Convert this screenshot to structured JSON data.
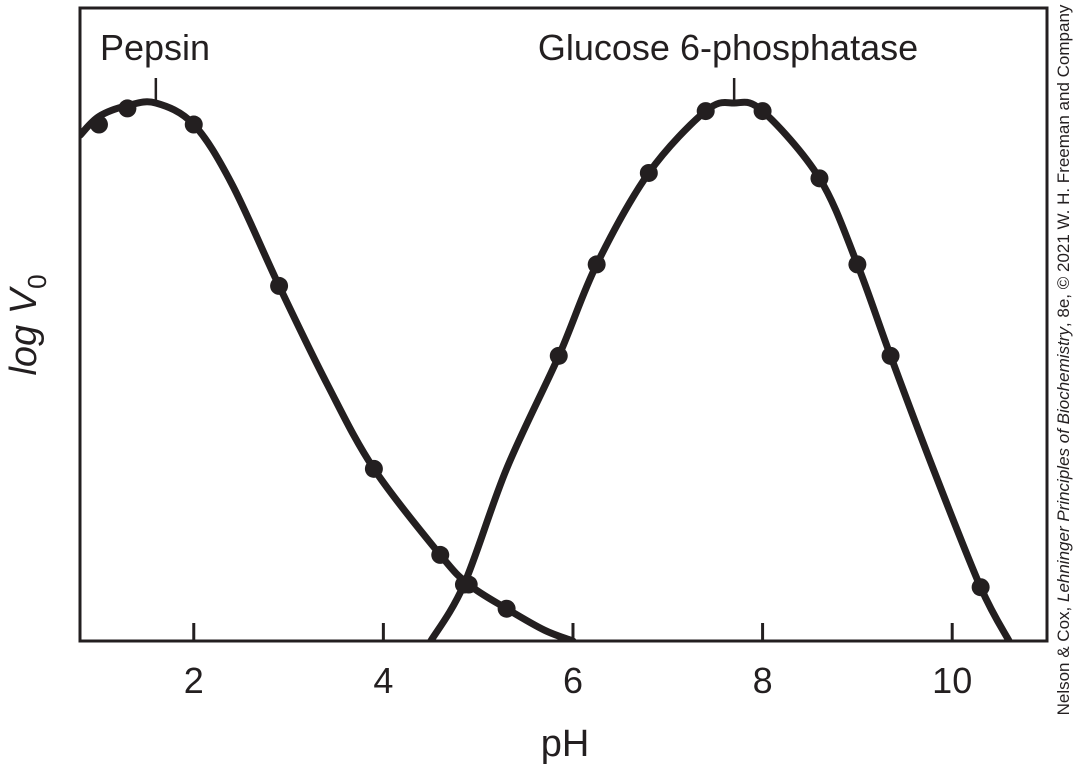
{
  "chart_data": {
    "type": "line",
    "title": "",
    "xlabel": "pH",
    "ylabel_main": "log V",
    "ylabel_sub": "0",
    "xlim": [
      0.8,
      11.0
    ],
    "ylim": [
      0,
      10
    ],
    "x_ticks": [
      2,
      4,
      6,
      8,
      10
    ],
    "x_tick_labels": [
      "2",
      "4",
      "6",
      "8",
      "10"
    ],
    "y_ticks_shown": false,
    "grid": false,
    "credit": {
      "prefix": "Nelson & Cox, ",
      "title_italic": "Lehninger Principles of Biochemistry",
      "suffix": ", 8e, © 2021 W. H. Freeman and Company"
    },
    "series": [
      {
        "name": "Pepsin",
        "label_anchor": [
          1.6,
          10.0
        ],
        "points": [
          [
            1.0,
            9.6
          ],
          [
            1.3,
            9.9
          ],
          [
            2.0,
            9.6
          ],
          [
            2.9,
            6.6
          ],
          [
            3.9,
            3.2
          ],
          [
            4.6,
            1.6
          ],
          [
            4.9,
            1.05
          ],
          [
            5.3,
            0.6
          ]
        ],
        "curve": [
          [
            0.8,
            9.4
          ],
          [
            1.0,
            9.75
          ],
          [
            1.3,
            9.95
          ],
          [
            1.6,
            10.0
          ],
          [
            2.0,
            9.6
          ],
          [
            2.4,
            8.5
          ],
          [
            2.9,
            6.6
          ],
          [
            3.4,
            4.8
          ],
          [
            3.9,
            3.2
          ],
          [
            4.6,
            1.6
          ],
          [
            4.9,
            1.05
          ],
          [
            5.3,
            0.6
          ],
          [
            5.7,
            0.2
          ],
          [
            6.0,
            0.0
          ]
        ]
      },
      {
        "name": "Glucose 6-phosphatase",
        "label_anchor": [
          7.7,
          10.0
        ],
        "points": [
          [
            4.85,
            1.05
          ],
          [
            5.85,
            5.3
          ],
          [
            6.25,
            7.0
          ],
          [
            6.8,
            8.7
          ],
          [
            7.4,
            9.85
          ],
          [
            8.0,
            9.85
          ],
          [
            8.6,
            8.6
          ],
          [
            9.0,
            7.0
          ],
          [
            9.35,
            5.3
          ],
          [
            10.3,
            1.0
          ]
        ],
        "curve": [
          [
            4.5,
            0.0
          ],
          [
            4.85,
            1.05
          ],
          [
            5.3,
            3.2
          ],
          [
            5.85,
            5.3
          ],
          [
            6.25,
            7.0
          ],
          [
            6.8,
            8.7
          ],
          [
            7.4,
            9.85
          ],
          [
            7.7,
            10.0
          ],
          [
            8.0,
            9.85
          ],
          [
            8.6,
            8.6
          ],
          [
            9.0,
            7.0
          ],
          [
            9.35,
            5.3
          ],
          [
            9.8,
            3.2
          ],
          [
            10.3,
            1.0
          ],
          [
            10.6,
            0.0
          ]
        ]
      }
    ]
  }
}
